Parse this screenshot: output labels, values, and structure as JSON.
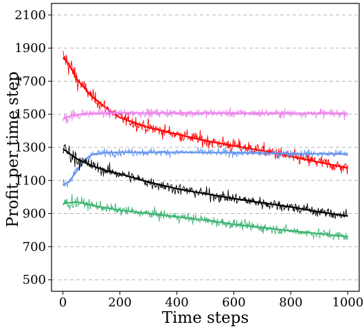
{
  "chart_data": {
    "type": "line",
    "title": "",
    "xlabel": "Time steps",
    "ylabel": "Profit per time step",
    "xlim": [
      -40,
      1040
    ],
    "ylim": [
      430,
      2170
    ],
    "xticks": [
      "0",
      "200",
      "400",
      "600",
      "800",
      "1000"
    ],
    "yticks": [
      "500",
      "700",
      "900",
      "1100",
      "1300",
      "1500",
      "1700",
      "1900",
      "2100"
    ],
    "grid": "horizontal dashed",
    "legend": "none",
    "series": [
      {
        "color": "#ff0000",
        "noise": 35,
        "smooth": {
          "x": [
            0,
            10,
            25,
            50,
            100,
            150,
            200,
            300,
            400,
            500,
            600,
            700,
            800,
            900,
            1000
          ],
          "y": [
            1840,
            1830,
            1790,
            1710,
            1610,
            1540,
            1480,
            1420,
            1380,
            1340,
            1310,
            1280,
            1245,
            1210,
            1175
          ]
        }
      },
      {
        "color": "#ee82ee",
        "noise": 22,
        "smooth": {
          "x": [
            0,
            10,
            30,
            60,
            100,
            200,
            400,
            600,
            800,
            1000
          ],
          "y": [
            1470,
            1480,
            1490,
            1500,
            1505,
            1508,
            1508,
            1507,
            1506,
            1505
          ]
        }
      },
      {
        "color": "#6495ed",
        "noise": 20,
        "smooth": {
          "x": [
            0,
            25,
            50,
            80,
            100,
            150,
            200,
            400,
            600,
            800,
            1000
          ],
          "y": [
            1070,
            1100,
            1160,
            1230,
            1255,
            1268,
            1270,
            1270,
            1268,
            1262,
            1260
          ]
        }
      },
      {
        "color": "#000000",
        "noise": 30,
        "smooth": {
          "x": [
            0,
            10,
            25,
            50,
            100,
            150,
            200,
            300,
            400,
            500,
            600,
            700,
            800,
            900,
            1000
          ],
          "y": [
            1290,
            1280,
            1260,
            1230,
            1190,
            1160,
            1140,
            1090,
            1050,
            1020,
            990,
            965,
            940,
            910,
            885
          ]
        }
      },
      {
        "color": "#3cb371",
        "noise": 25,
        "smooth": {
          "x": [
            0,
            20,
            50,
            80,
            100,
            200,
            300,
            400,
            500,
            600,
            700,
            800,
            900,
            1000
          ],
          "y": [
            960,
            965,
            970,
            960,
            950,
            920,
            900,
            880,
            860,
            835,
            815,
            795,
            778,
            760
          ]
        }
      }
    ]
  }
}
